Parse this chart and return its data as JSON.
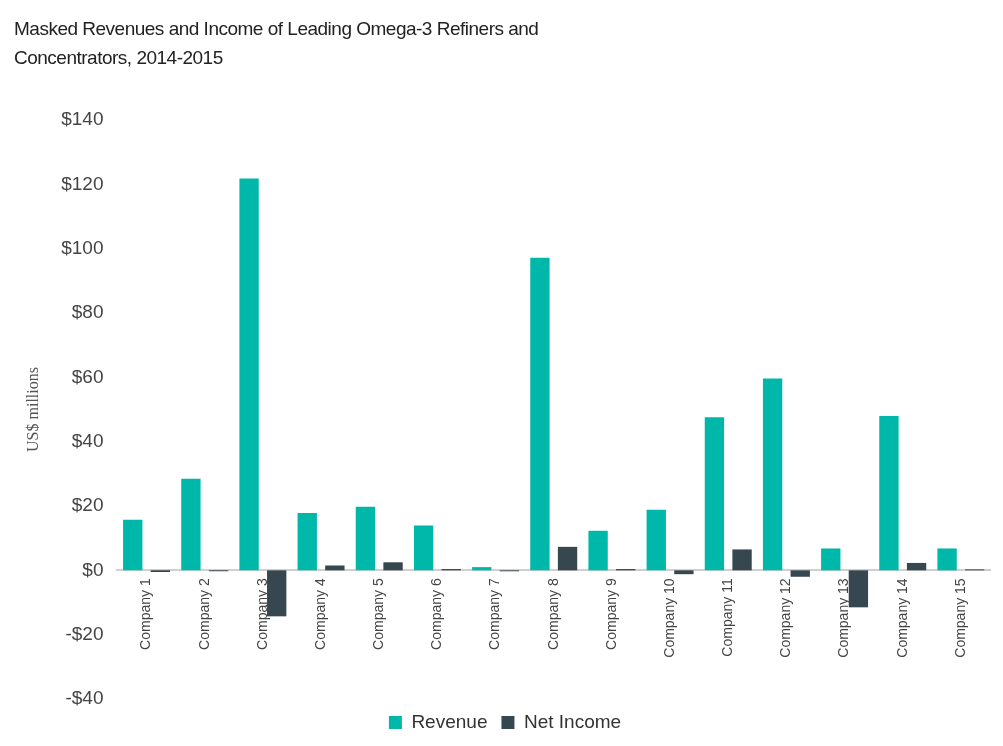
{
  "chart_data": {
    "type": "bar",
    "title": "Masked Revenues and Income of Leading Omega-3 Refiners and Concentrators, 2014-2015",
    "ylabel": "US$ millions",
    "categories": [
      "Company 1",
      "Company 2",
      "Company 3",
      "Company 4",
      "Company 5",
      "Company 6",
      "Company 7",
      "Company 8",
      "Company 9",
      "Company 10",
      "Company 11",
      "Company 12",
      "Company 13",
      "Company 14",
      "Company 15"
    ],
    "series": [
      {
        "name": "Revenue",
        "color": "#00b8a9",
        "values": [
          15.7,
          28.5,
          121.8,
          17.8,
          19.8,
          13.9,
          1,
          97.2,
          12.3,
          18.8,
          47.6,
          59.6,
          6.8,
          48,
          6.8
        ]
      },
      {
        "name": "Net Income",
        "color": "#37474f",
        "values": [
          -0.5,
          -0.3,
          -14.3,
          1.5,
          2.5,
          0.4,
          -0.3,
          7.3,
          0.4,
          -1.2,
          6.5,
          -2,
          -11.5,
          2.3,
          0.3
        ]
      }
    ],
    "ylim": [
      -40,
      140
    ],
    "yticks": [
      {
        "value": -40,
        "label": "-$40"
      },
      {
        "value": -20,
        "label": "-$20"
      },
      {
        "value": 0,
        "label": "$0"
      },
      {
        "value": 20,
        "label": "$20"
      },
      {
        "value": 40,
        "label": "$40"
      },
      {
        "value": 60,
        "label": "$60"
      },
      {
        "value": 80,
        "label": "$80"
      },
      {
        "value": 100,
        "label": "$100"
      },
      {
        "value": 120,
        "label": "$120"
      },
      {
        "value": 140,
        "label": "$140"
      }
    ],
    "grid": false,
    "legend": "bottom"
  }
}
